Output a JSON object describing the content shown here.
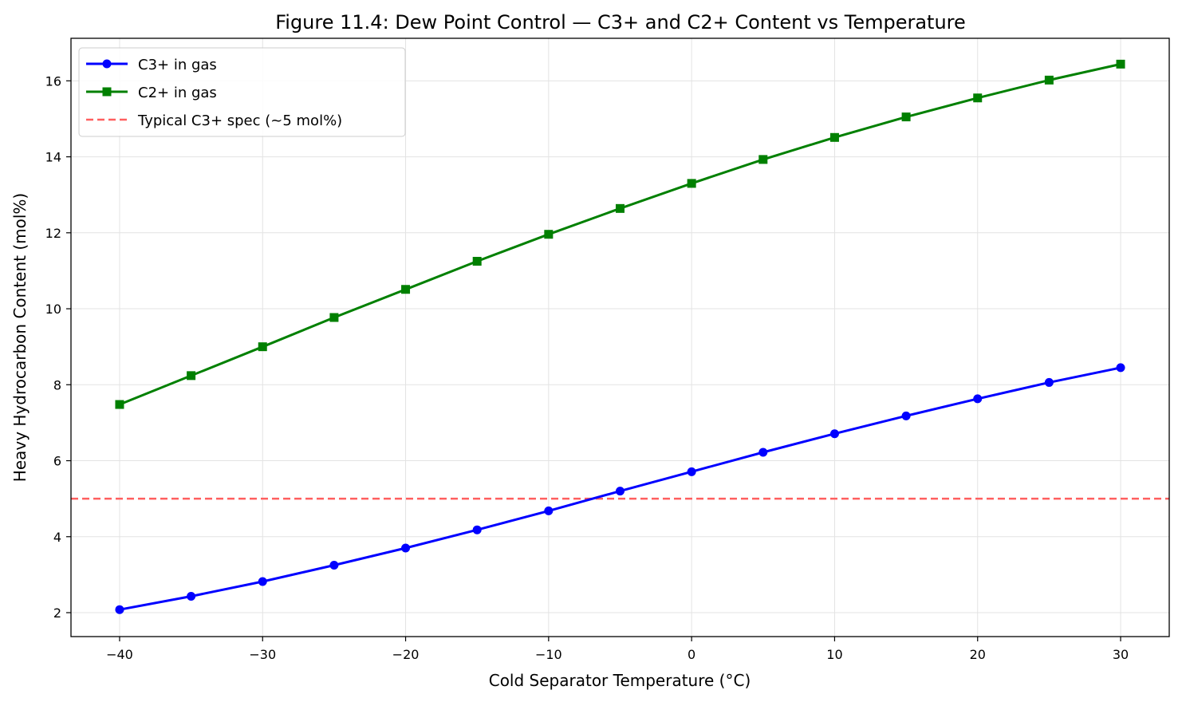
{
  "chart_data": {
    "type": "line",
    "title": "Figure 11.4: Dew Point Control — C3+ and C2+ Content vs Temperature",
    "xlabel": "Cold Separator Temperature (°C)",
    "ylabel": "Heavy Hydrocarbon Content (mol%)",
    "xlim": [
      -43.4,
      33.4
    ],
    "ylim": [
      1.37,
      17.12
    ],
    "xticks": [
      -40,
      -30,
      -20,
      -10,
      0,
      10,
      20,
      30
    ],
    "yticks": [
      2,
      4,
      6,
      8,
      10,
      12,
      14,
      16
    ],
    "grid": true,
    "legend_position": "top-left",
    "x": [
      -40,
      -35,
      -30,
      -25,
      -20,
      -15,
      -10,
      -5,
      0,
      5,
      10,
      15,
      20,
      25,
      30
    ],
    "series": [
      {
        "name": "C3+ in gas",
        "color": "#0000ff",
        "marker": "circle",
        "values": [
          2.08,
          2.43,
          2.82,
          3.25,
          3.7,
          4.18,
          4.68,
          5.2,
          5.71,
          6.22,
          6.71,
          7.18,
          7.63,
          8.06,
          8.45
        ]
      },
      {
        "name": "C2+ in gas",
        "color": "#008000",
        "marker": "square",
        "values": [
          7.48,
          8.24,
          9.0,
          9.77,
          10.51,
          11.25,
          11.96,
          12.64,
          13.3,
          13.93,
          14.51,
          15.05,
          15.55,
          16.02,
          16.44
        ]
      }
    ],
    "reference_lines": [
      {
        "name": "Typical C3+ spec (~5 mol%)",
        "y": 5,
        "color": "#ff5f5f",
        "style": "dashed"
      }
    ]
  }
}
